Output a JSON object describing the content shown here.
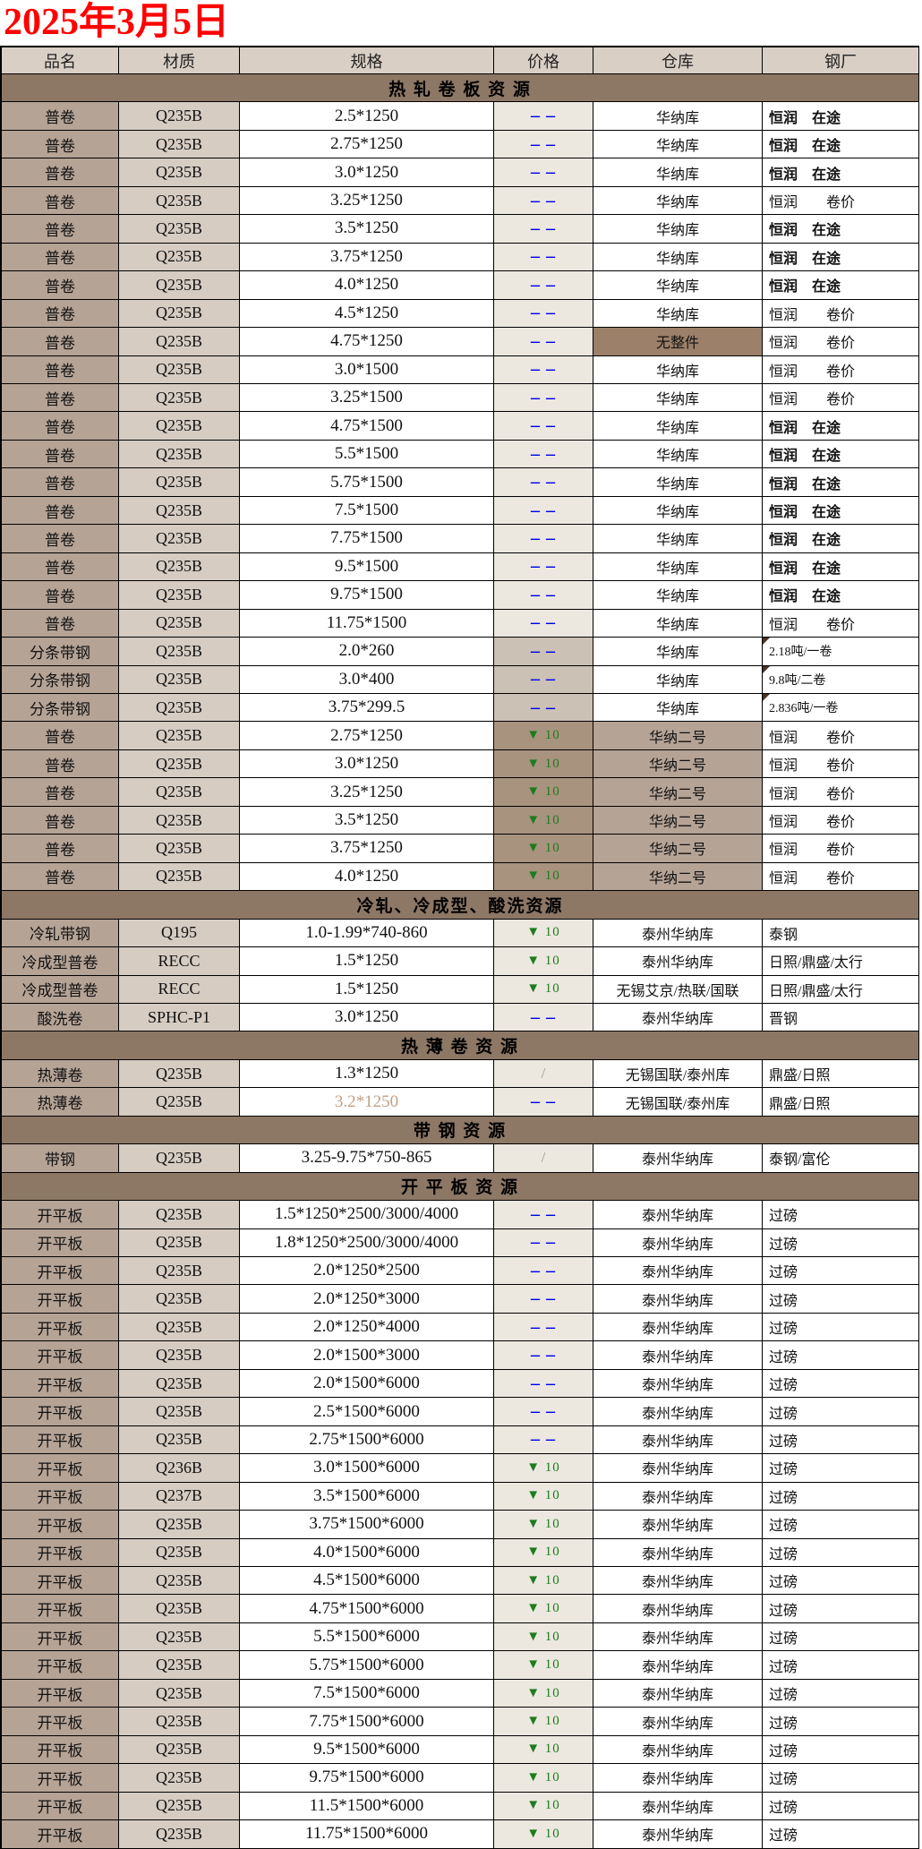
{
  "title": "2025年3月5日",
  "columns": [
    "品名",
    "材质",
    "规格",
    "价格",
    "仓库",
    "钢厂"
  ],
  "price_symbols": {
    "dash": "– –",
    "down": "▼ 10",
    "slash": "/"
  },
  "colors": {
    "title_red": "#ff0000",
    "section_bar": "#8d7765",
    "name_col": "#b5a396",
    "mat_col": "#d6ccc2",
    "header_row": "#d9cfc5",
    "price_col": "#ece8e0",
    "price_dark": "#cbc1b4",
    "price_brown": "#a8937f",
    "warehouse_dark": "#9c8069",
    "warehouse_brown": "#b5a396",
    "dash_blue": "#0000ee",
    "drop_green": "#1e7b1e",
    "spec_tan": "#c2a084"
  },
  "sections": [
    {
      "title": "热 轧 卷 板 资 源",
      "rows": [
        {
          "name": "普卷",
          "mat": "Q235B",
          "spec": "2.5*1250",
          "price": "dash",
          "wh": "华纳库",
          "mill": "恒润　在途",
          "millBold": 1
        },
        {
          "name": "普卷",
          "mat": "Q235B",
          "spec": "2.75*1250",
          "price": "dash",
          "wh": "华纳库",
          "mill": "恒润　在途",
          "millBold": 1
        },
        {
          "name": "普卷",
          "mat": "Q235B",
          "spec": "3.0*1250",
          "price": "dash",
          "wh": "华纳库",
          "mill": "恒润　在途",
          "millBold": 1
        },
        {
          "name": "普卷",
          "mat": "Q235B",
          "spec": "3.25*1250",
          "price": "dash",
          "wh": "华纳库",
          "mill": "恒润　　卷价"
        },
        {
          "name": "普卷",
          "mat": "Q235B",
          "spec": "3.5*1250",
          "price": "dash",
          "wh": "华纳库",
          "mill": "恒润　在途",
          "millBold": 1
        },
        {
          "name": "普卷",
          "mat": "Q235B",
          "spec": "3.75*1250",
          "price": "dash",
          "wh": "华纳库",
          "mill": "恒润　在途",
          "millBold": 1
        },
        {
          "name": "普卷",
          "mat": "Q235B",
          "spec": "4.0*1250",
          "price": "dash",
          "wh": "华纳库",
          "mill": "恒润　在途",
          "millBold": 1
        },
        {
          "name": "普卷",
          "mat": "Q235B",
          "spec": "4.5*1250",
          "price": "dash",
          "wh": "华纳库",
          "mill": "恒润　　卷价"
        },
        {
          "name": "普卷",
          "mat": "Q235B",
          "spec": "4.75*1250",
          "price": "dash",
          "wh": "无整件",
          "whBg": "dark",
          "mill": "恒润　　卷价"
        },
        {
          "name": "普卷",
          "mat": "Q235B",
          "spec": "3.0*1500",
          "price": "dash",
          "wh": "华纳库",
          "mill": "恒润　　卷价"
        },
        {
          "name": "普卷",
          "mat": "Q235B",
          "spec": "3.25*1500",
          "price": "dash",
          "wh": "华纳库",
          "mill": "恒润　　卷价"
        },
        {
          "name": "普卷",
          "mat": "Q235B",
          "spec": "4.75*1500",
          "price": "dash",
          "wh": "华纳库",
          "mill": "恒润　在途",
          "millBold": 1
        },
        {
          "name": "普卷",
          "mat": "Q235B",
          "spec": "5.5*1500",
          "price": "dash",
          "wh": "华纳库",
          "mill": "恒润　在途",
          "millBold": 1
        },
        {
          "name": "普卷",
          "mat": "Q235B",
          "spec": "5.75*1500",
          "price": "dash",
          "wh": "华纳库",
          "mill": "恒润　在途",
          "millBold": 1
        },
        {
          "name": "普卷",
          "mat": "Q235B",
          "spec": "7.5*1500",
          "price": "dash",
          "wh": "华纳库",
          "mill": "恒润　在途",
          "millBold": 1
        },
        {
          "name": "普卷",
          "mat": "Q235B",
          "spec": "7.75*1500",
          "price": "dash",
          "wh": "华纳库",
          "mill": "恒润　在途",
          "millBold": 1
        },
        {
          "name": "普卷",
          "mat": "Q235B",
          "spec": "9.5*1500",
          "price": "dash",
          "wh": "华纳库",
          "mill": "恒润　在途",
          "millBold": 1
        },
        {
          "name": "普卷",
          "mat": "Q235B",
          "spec": "9.75*1500",
          "price": "dash",
          "wh": "华纳库",
          "mill": "恒润　在途",
          "millBold": 1
        },
        {
          "name": "普卷",
          "mat": "Q235B",
          "spec": "11.75*1500",
          "price": "dash",
          "wh": "华纳库",
          "mill": "恒润　　卷价"
        },
        {
          "name": "分条带钢",
          "mat": "Q235B",
          "spec": "2.0*260",
          "price": "dash",
          "priceBg": "dark",
          "wh": "华纳库",
          "mill": "2.18吨/一卷",
          "millSmall": 1,
          "mark": 1
        },
        {
          "name": "分条带钢",
          "mat": "Q235B",
          "spec": "3.0*400",
          "price": "dash",
          "priceBg": "dark",
          "wh": "华纳库",
          "mill": "9.8吨/二卷",
          "millSmall": 1,
          "mark": 1
        },
        {
          "name": "分条带钢",
          "mat": "Q235B",
          "spec": "3.75*299.5",
          "price": "dash",
          "priceBg": "dark",
          "wh": "华纳库",
          "mill": "2.836吨/一卷",
          "millSmall": 1,
          "mark": 1
        },
        {
          "name": "普卷",
          "mat": "Q235B",
          "spec": "2.75*1250",
          "price": "down",
          "priceBg": "brown",
          "wh": "华纳二号",
          "whBg": "brown",
          "mill": "恒润　　卷价"
        },
        {
          "name": "普卷",
          "mat": "Q235B",
          "spec": "3.0*1250",
          "price": "down",
          "priceBg": "brown",
          "wh": "华纳二号",
          "whBg": "brown",
          "mill": "恒润　　卷价"
        },
        {
          "name": "普卷",
          "mat": "Q235B",
          "spec": "3.25*1250",
          "price": "down",
          "priceBg": "brown",
          "wh": "华纳二号",
          "whBg": "brown",
          "mill": "恒润　　卷价"
        },
        {
          "name": "普卷",
          "mat": "Q235B",
          "spec": "3.5*1250",
          "price": "down",
          "priceBg": "brown",
          "wh": "华纳二号",
          "whBg": "brown",
          "mill": "恒润　　卷价"
        },
        {
          "name": "普卷",
          "mat": "Q235B",
          "spec": "3.75*1250",
          "price": "down",
          "priceBg": "brown",
          "wh": "华纳二号",
          "whBg": "brown",
          "mill": "恒润　　卷价"
        },
        {
          "name": "普卷",
          "mat": "Q235B",
          "spec": "4.0*1250",
          "price": "down",
          "priceBg": "brown",
          "wh": "华纳二号",
          "whBg": "brown",
          "mill": "恒润　　卷价"
        }
      ]
    },
    {
      "title": "冷轧、冷成型、酸洗资源",
      "rows": [
        {
          "name": "冷轧带钢",
          "mat": "Q195",
          "spec": "1.0-1.99*740-860",
          "price": "down",
          "wh": "泰州华纳库",
          "mill": "泰钢"
        },
        {
          "name": "冷成型普卷",
          "mat": "RECC",
          "spec": "1.5*1250",
          "price": "down",
          "wh": "泰州华纳库",
          "mill": "日照/鼎盛/太行"
        },
        {
          "name": "冷成型普卷",
          "mat": "RECC",
          "spec": "1.5*1250",
          "price": "down",
          "wh": "无锡艾京/热联/国联",
          "mill": "日照/鼎盛/太行"
        },
        {
          "name": "酸洗卷",
          "mat": "SPHC-P1",
          "spec": "3.0*1250",
          "price": "dash",
          "wh": "泰州华纳库",
          "mill": "晋钢"
        }
      ]
    },
    {
      "title": "热 薄 卷 资 源",
      "rows": [
        {
          "name": "热薄卷",
          "mat": "Q235B",
          "spec": "1.3*1250",
          "price": "slash",
          "wh": "无锡国联/泰州库",
          "mill": "鼎盛/日照"
        },
        {
          "name": "热薄卷",
          "mat": "Q235B",
          "spec": "3.2*1250",
          "specTan": 1,
          "price": "dash",
          "wh": "无锡国联/泰州库",
          "mill": "鼎盛/日照"
        }
      ]
    },
    {
      "title": "带 钢 资 源",
      "rows": [
        {
          "name": "带钢",
          "mat": "Q235B",
          "spec": "3.25-9.75*750-865",
          "price": "slash",
          "wh": "泰州华纳库",
          "mill": "泰钢/富伦"
        }
      ]
    },
    {
      "title": "开 平 板 资 源",
      "rows": [
        {
          "name": "开平板",
          "mat": "Q235B",
          "spec": "1.5*1250*2500/3000/4000",
          "price": "dash",
          "wh": "泰州华纳库",
          "mill": "过磅"
        },
        {
          "name": "开平板",
          "mat": "Q235B",
          "spec": "1.8*1250*2500/3000/4000",
          "price": "dash",
          "wh": "泰州华纳库",
          "mill": "过磅"
        },
        {
          "name": "开平板",
          "mat": "Q235B",
          "spec": "2.0*1250*2500",
          "price": "dash",
          "wh": "泰州华纳库",
          "mill": "过磅"
        },
        {
          "name": "开平板",
          "mat": "Q235B",
          "spec": "2.0*1250*3000",
          "price": "dash",
          "wh": "泰州华纳库",
          "mill": "过磅"
        },
        {
          "name": "开平板",
          "mat": "Q235B",
          "spec": "2.0*1250*4000",
          "price": "dash",
          "wh": "泰州华纳库",
          "mill": "过磅"
        },
        {
          "name": "开平板",
          "mat": "Q235B",
          "spec": "2.0*1500*3000",
          "price": "dash",
          "wh": "泰州华纳库",
          "mill": "过磅"
        },
        {
          "name": "开平板",
          "mat": "Q235B",
          "spec": "2.0*1500*6000",
          "price": "dash",
          "wh": "泰州华纳库",
          "mill": "过磅"
        },
        {
          "name": "开平板",
          "mat": "Q235B",
          "spec": "2.5*1500*6000",
          "price": "dash",
          "wh": "泰州华纳库",
          "mill": "过磅"
        },
        {
          "name": "开平板",
          "mat": "Q235B",
          "spec": "2.75*1500*6000",
          "price": "dash",
          "wh": "泰州华纳库",
          "mill": "过磅"
        },
        {
          "name": "开平板",
          "mat": "Q236B",
          "spec": "3.0*1500*6000",
          "price": "down",
          "wh": "泰州华纳库",
          "mill": "过磅"
        },
        {
          "name": "开平板",
          "mat": "Q237B",
          "spec": "3.5*1500*6000",
          "price": "down",
          "wh": "泰州华纳库",
          "mill": "过磅"
        },
        {
          "name": "开平板",
          "mat": "Q235B",
          "spec": "3.75*1500*6000",
          "price": "down",
          "wh": "泰州华纳库",
          "mill": "过磅"
        },
        {
          "name": "开平板",
          "mat": "Q235B",
          "spec": "4.0*1500*6000",
          "price": "down",
          "wh": "泰州华纳库",
          "mill": "过磅"
        },
        {
          "name": "开平板",
          "mat": "Q235B",
          "spec": "4.5*1500*6000",
          "price": "down",
          "wh": "泰州华纳库",
          "mill": "过磅"
        },
        {
          "name": "开平板",
          "mat": "Q235B",
          "spec": "4.75*1500*6000",
          "price": "down",
          "wh": "泰州华纳库",
          "mill": "过磅"
        },
        {
          "name": "开平板",
          "mat": "Q235B",
          "spec": "5.5*1500*6000",
          "price": "down",
          "wh": "泰州华纳库",
          "mill": "过磅"
        },
        {
          "name": "开平板",
          "mat": "Q235B",
          "spec": "5.75*1500*6000",
          "price": "down",
          "wh": "泰州华纳库",
          "mill": "过磅"
        },
        {
          "name": "开平板",
          "mat": "Q235B",
          "spec": "7.5*1500*6000",
          "price": "down",
          "wh": "泰州华纳库",
          "mill": "过磅"
        },
        {
          "name": "开平板",
          "mat": "Q235B",
          "spec": "7.75*1500*6000",
          "price": "down",
          "wh": "泰州华纳库",
          "mill": "过磅"
        },
        {
          "name": "开平板",
          "mat": "Q235B",
          "spec": "9.5*1500*6000",
          "price": "down",
          "wh": "泰州华纳库",
          "mill": "过磅"
        },
        {
          "name": "开平板",
          "mat": "Q235B",
          "spec": "9.75*1500*6000",
          "price": "down",
          "wh": "泰州华纳库",
          "mill": "过磅"
        },
        {
          "name": "开平板",
          "mat": "Q235B",
          "spec": "11.5*1500*6000",
          "price": "down",
          "wh": "泰州华纳库",
          "mill": "过磅"
        },
        {
          "name": "开平板",
          "mat": "Q235B",
          "spec": "11.75*1500*6000",
          "price": "down",
          "wh": "泰州华纳库",
          "mill": "过磅"
        }
      ]
    }
  ]
}
